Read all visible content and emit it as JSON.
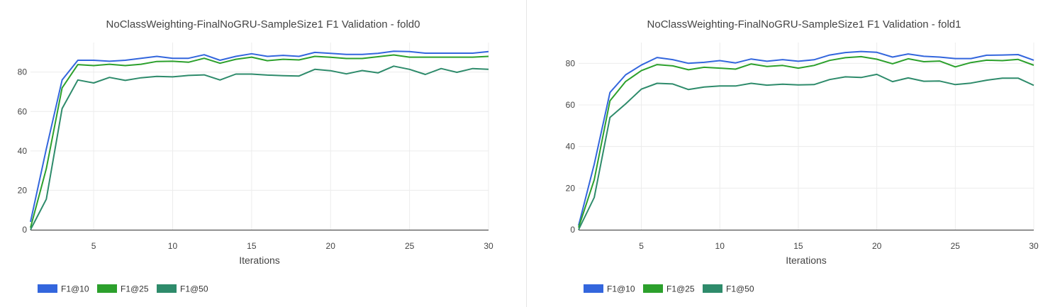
{
  "chart_data": [
    {
      "type": "line",
      "title": "NoClassWeighting-FinalNoGRU-SampleSize1 F1 Validation - fold0",
      "xlabel": "Iterations",
      "ylabel": "",
      "x": [
        1,
        2,
        3,
        4,
        5,
        6,
        7,
        8,
        9,
        10,
        11,
        12,
        13,
        14,
        15,
        16,
        17,
        18,
        19,
        20,
        21,
        22,
        23,
        24,
        25,
        26,
        27,
        28,
        29,
        30
      ],
      "xlim": [
        1,
        30
      ],
      "ylim": [
        0,
        95
      ],
      "xticks": [
        5,
        10,
        15,
        20,
        25,
        30
      ],
      "yticks": [
        0,
        20,
        40,
        60,
        80
      ],
      "grid": true,
      "legend_position": "bottom-left",
      "series": [
        {
          "name": "F1@10",
          "color": "#3366dd",
          "values": [
            4,
            41,
            76,
            86,
            86,
            85.5,
            86,
            87,
            88,
            87,
            87,
            88.8,
            86,
            88,
            89.3,
            88,
            88.5,
            88,
            90,
            89.5,
            89,
            89,
            89.5,
            90.6,
            90.4,
            89.6,
            89.6,
            89.6,
            89.6,
            90.4
          ]
        },
        {
          "name": "F1@25",
          "color": "#2ca02c",
          "values": [
            1,
            31,
            72,
            83.8,
            83.3,
            84,
            83.3,
            84,
            85.4,
            85.5,
            85,
            87,
            84.5,
            86.5,
            87.6,
            85.8,
            86.5,
            86.2,
            88,
            87.5,
            86.9,
            86.9,
            87.8,
            88.7,
            87.6,
            87.6,
            87.6,
            87.6,
            87.6,
            88
          ]
        },
        {
          "name": "F1@50",
          "color": "#2e8b6b",
          "values": [
            0,
            15.5,
            61.5,
            76,
            74.5,
            77.3,
            75.8,
            77.1,
            77.8,
            77.6,
            78.3,
            78.6,
            76,
            79,
            79,
            78.5,
            78.2,
            78,
            81.4,
            80.7,
            79.1,
            80.8,
            79.6,
            83,
            81.4,
            78.8,
            81.8,
            79.9,
            81.8,
            81.4
          ]
        }
      ]
    },
    {
      "type": "line",
      "title": "NoClassWeighting-FinalNoGRU-SampleSize1 F1 Validation - fold1",
      "xlabel": "Iterations",
      "ylabel": "",
      "x": [
        1,
        2,
        3,
        4,
        5,
        6,
        7,
        8,
        9,
        10,
        11,
        12,
        13,
        14,
        15,
        16,
        17,
        18,
        19,
        20,
        21,
        22,
        23,
        24,
        25,
        26,
        27,
        28,
        29,
        30
      ],
      "xlim": [
        1,
        30
      ],
      "ylim": [
        0,
        90
      ],
      "xticks": [
        5,
        10,
        15,
        20,
        25,
        30
      ],
      "yticks": [
        0,
        20,
        40,
        60,
        80
      ],
      "grid": true,
      "legend_position": "bottom-left",
      "series": [
        {
          "name": "F1@10",
          "color": "#3366dd",
          "values": [
            2,
            31.5,
            66,
            74.5,
            79.2,
            82.8,
            81.8,
            80,
            80.5,
            81.3,
            80.2,
            82.1,
            81,
            81.8,
            81,
            81.7,
            84,
            85.2,
            85.7,
            85.3,
            83,
            84.5,
            83.4,
            83,
            82.3,
            82.3,
            83.9,
            84,
            84.2,
            81.5
          ]
        },
        {
          "name": "F1@25",
          "color": "#2ca02c",
          "values": [
            1,
            24,
            62,
            71.3,
            76.5,
            79.4,
            78.8,
            76.9,
            78.1,
            77.7,
            77.2,
            79.7,
            78.5,
            79,
            77.7,
            79,
            81.4,
            82.7,
            83.2,
            82,
            79.8,
            82.2,
            80.8,
            81.1,
            78.3,
            80.4,
            81.5,
            81.3,
            81.9,
            79.1
          ]
        },
        {
          "name": "F1@50",
          "color": "#2e8b6b",
          "values": [
            0,
            15.5,
            54,
            60.5,
            67.6,
            70.4,
            70.1,
            67.4,
            68.6,
            69.1,
            69.1,
            70.4,
            69.5,
            70,
            69.6,
            69.8,
            72.2,
            73.5,
            73.2,
            74.7,
            71.2,
            73,
            71.4,
            71.5,
            69.8,
            70.5,
            71.9,
            72.9,
            72.9,
            69.4
          ]
        }
      ]
    }
  ]
}
